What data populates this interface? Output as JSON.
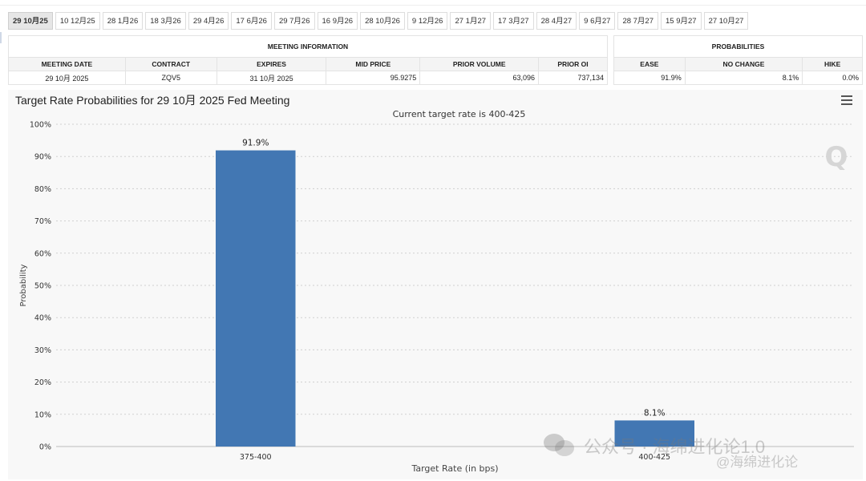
{
  "tabs": [
    "29 10月25",
    "10 12月25",
    "28 1月26",
    "18 3月26",
    "29 4月26",
    "17 6月26",
    "29 7月26",
    "16 9月26",
    "28 10月26",
    "9 12月26",
    "27 1月27",
    "17 3月27",
    "28 4月27",
    "9 6月27",
    "28 7月27",
    "15 9月27",
    "27 10月27"
  ],
  "active_tab": 0,
  "meeting_info": {
    "caption": "MEETING INFORMATION",
    "headers": [
      "MEETING DATE",
      "CONTRACT",
      "EXPIRES",
      "MID PRICE",
      "PRIOR VOLUME",
      "PRIOR OI"
    ],
    "values": [
      "29 10月 2025",
      "ZQV5",
      "31 10月 2025",
      "95.9275",
      "63,096",
      "737,134"
    ]
  },
  "probabilities": {
    "caption": "PROBABILITIES",
    "headers": [
      "EASE",
      "NO CHANGE",
      "HIKE"
    ],
    "values": [
      "91.9%",
      "8.1%",
      "0.0%"
    ]
  },
  "watermarks": {
    "line1": "公众号 · 海绵进化论1.0",
    "line2": "@海绵进化论",
    "logo": "Q"
  },
  "chart_data": {
    "type": "bar",
    "title": "Target Rate Probabilities for 29 10月 2025 Fed Meeting",
    "subtitle": "Current target rate is 400-425",
    "xlabel": "Target Rate (in bps)",
    "ylabel": "Probability",
    "categories": [
      "375-400",
      "400-425"
    ],
    "values": [
      91.9,
      8.1
    ],
    "data_labels": [
      "91.9%",
      "8.1%"
    ],
    "ylim": [
      0,
      100
    ],
    "yticks": [
      "0%",
      "10%",
      "20%",
      "30%",
      "40%",
      "50%",
      "60%",
      "70%",
      "80%",
      "90%",
      "100%"
    ],
    "grid": true,
    "bar_color": "#4277b3"
  }
}
